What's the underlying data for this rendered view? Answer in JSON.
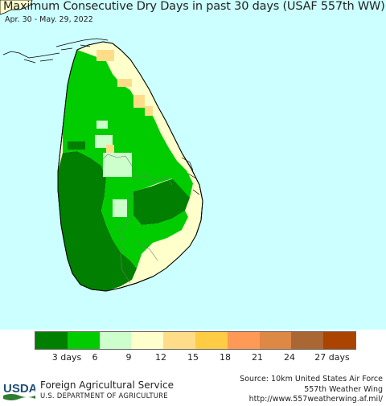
{
  "header": {
    "title": "Maximum Consecutive Dry Days in past 30 days (USAF 557th WW)",
    "subtitle": "Apr. 30 - May. 29, 2022"
  },
  "legend": {
    "colors": [
      "#007f00",
      "#00cc00",
      "#ccffcc",
      "#ffffcc",
      "#ffdd88",
      "#ffcc44",
      "#ff9955",
      "#dd8844",
      "#aa6633",
      "#aa4400"
    ],
    "tick_labels": [
      "3 days",
      "6",
      "9",
      "12",
      "15",
      "18",
      "21",
      "24",
      "27 days"
    ]
  },
  "map": {
    "water_color": "#ccffff",
    "land_color": "#ffffcc"
  },
  "footer": {
    "logo_text": "USDA",
    "agency": "Foreign Agricultural Service",
    "department": "U.S. DEPARTMENT OF AGRICULTURE",
    "source_line1": "Source: 10km United States Air Force",
    "source_line2": "557th Weather Wing",
    "source_line3": "http://www.557weatherwing.af.mil/"
  }
}
